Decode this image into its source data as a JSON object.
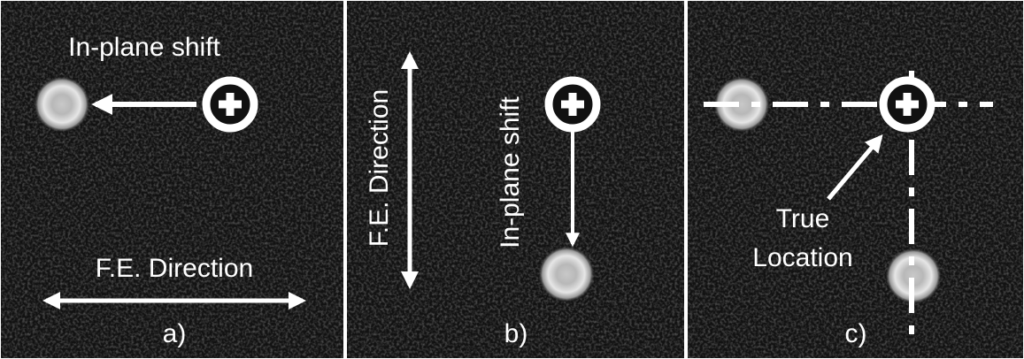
{
  "panels": [
    {
      "label": "a)",
      "shift_label": "In-plane shift",
      "direction_label": "F.E. Direction"
    },
    {
      "label": "b)",
      "shift_label": "In-plane shift",
      "direction_label": "F.E. Direction"
    },
    {
      "label": "c)",
      "location_label": [
        "True",
        "Location"
      ]
    }
  ]
}
